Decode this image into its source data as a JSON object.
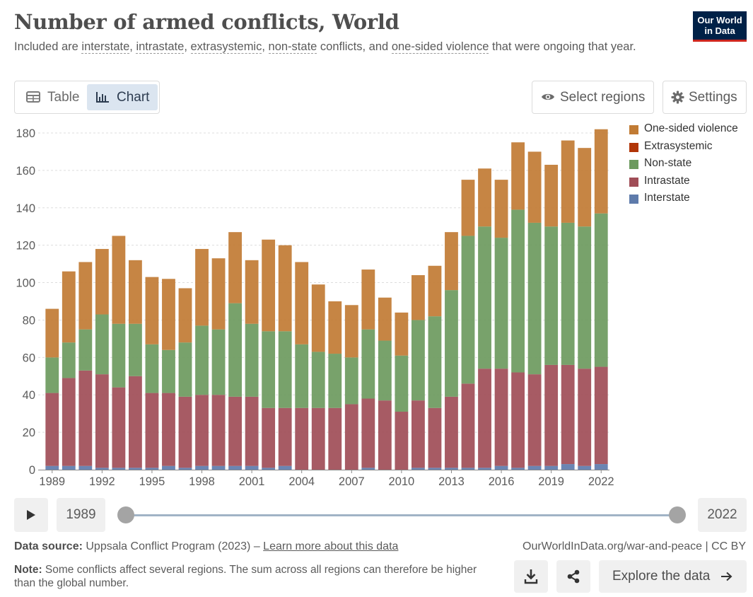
{
  "header": {
    "title": "Number of armed conflicts, World",
    "subtitle_parts": [
      "Included are ",
      "interstate",
      ", ",
      "intrastate",
      ", ",
      "extrasystemic",
      ", ",
      "non-state",
      " conflicts, and ",
      "one-sided violence",
      " that were ongoing that year."
    ],
    "logo_line1": "Our World",
    "logo_line2": "in Data"
  },
  "controls": {
    "table_label": "Table",
    "chart_label": "Chart",
    "select_regions_label": "Select regions",
    "settings_label": "Settings"
  },
  "timeline": {
    "start_year": "1989",
    "end_year": "2022",
    "range_start_fraction": 0,
    "range_end_fraction": 1
  },
  "footer": {
    "source_label": "Data source:",
    "source_text": "Uppsala Conflict Program (2023) –",
    "source_link": "Learn more about this data",
    "site_text": "OurWorldInData.org/war-and-peace | CC BY",
    "note_label": "Note:",
    "note_text": "Some conflicts affect several regions. The sum across all regions can therefore be higher than the global number.",
    "explore_label": "Explore the data"
  },
  "colors": {
    "one_sided": "#c17b34",
    "extrasystemic": "#b13507",
    "non_state": "#6c9a5e",
    "intrastate": "#a04d57",
    "interstate": "#5e7bab",
    "grid": "#dddddd"
  },
  "chart_data": {
    "type": "bar",
    "stacked": true,
    "title": "Number of armed conflicts, World",
    "ylim": [
      0,
      180
    ],
    "yticks": [
      0,
      20,
      40,
      60,
      80,
      100,
      120,
      140,
      160,
      180
    ],
    "xticks": [
      "1989",
      "1992",
      "1995",
      "1998",
      "2001",
      "2004",
      "2007",
      "2010",
      "2013",
      "2016",
      "2019",
      "2022"
    ],
    "grid": true,
    "legend_position": "right",
    "categories": [
      "1989",
      "1990",
      "1991",
      "1992",
      "1993",
      "1994",
      "1995",
      "1996",
      "1997",
      "1998",
      "1999",
      "2000",
      "2001",
      "2002",
      "2003",
      "2004",
      "2005",
      "2006",
      "2007",
      "2008",
      "2009",
      "2010",
      "2011",
      "2012",
      "2013",
      "2014",
      "2015",
      "2016",
      "2017",
      "2018",
      "2019",
      "2020",
      "2021",
      "2022"
    ],
    "series": [
      {
        "name": "Interstate",
        "color_key": "interstate",
        "values": [
          2,
          2,
          2,
          1,
          1,
          1,
          1,
          2,
          1,
          2,
          2,
          2,
          2,
          1,
          2,
          0,
          0,
          0,
          0,
          1,
          0,
          0,
          1,
          1,
          1,
          1,
          1,
          2,
          1,
          2,
          2,
          3,
          2,
          3
        ]
      },
      {
        "name": "Intrastate",
        "color_key": "intrastate",
        "values": [
          39,
          47,
          51,
          50,
          43,
          49,
          40,
          39,
          38,
          38,
          38,
          37,
          37,
          32,
          31,
          33,
          33,
          33,
          35,
          37,
          37,
          31,
          36,
          32,
          38,
          45,
          53,
          52,
          51,
          49,
          54,
          53,
          52,
          52
        ]
      },
      {
        "name": "Extrasystemic",
        "color_key": "extrasystemic",
        "values": [
          0,
          0,
          0,
          0,
          0,
          0,
          0,
          0,
          0,
          0,
          0,
          0,
          0,
          0,
          0,
          0,
          0,
          0,
          0,
          0,
          0,
          0,
          0,
          0,
          0,
          0,
          0,
          0,
          0,
          0,
          0,
          0,
          0,
          0
        ]
      },
      {
        "name": "Non-state",
        "color_key": "non_state",
        "values": [
          19,
          19,
          22,
          32,
          34,
          28,
          26,
          23,
          29,
          37,
          35,
          50,
          39,
          41,
          41,
          34,
          30,
          29,
          25,
          37,
          32,
          30,
          43,
          49,
          57,
          79,
          76,
          70,
          87,
          81,
          74,
          76,
          76,
          82
        ]
      },
      {
        "name": "One-sided violence",
        "color_key": "one_sided",
        "values": [
          26,
          38,
          36,
          35,
          47,
          34,
          36,
          38,
          29,
          41,
          38,
          38,
          34,
          49,
          46,
          44,
          36,
          28,
          28,
          32,
          23,
          23,
          24,
          27,
          31,
          30,
          31,
          31,
          36,
          38,
          33,
          44,
          42,
          45
        ]
      }
    ],
    "legend_order": [
      "One-sided violence",
      "Extrasystemic",
      "Non-state",
      "Intrastate",
      "Interstate"
    ]
  }
}
